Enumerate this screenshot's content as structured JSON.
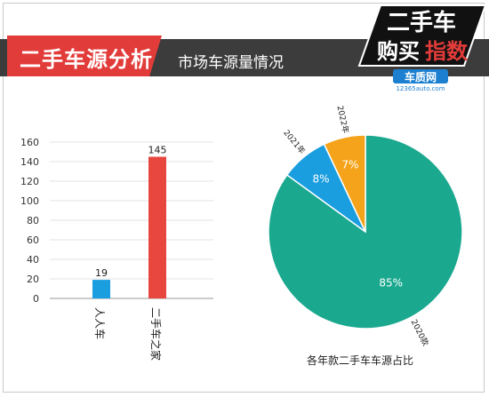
{
  "header": {
    "title": "二手车源分析",
    "subtitle": "市场车源量情况",
    "logo_text_top": "二手车",
    "logo_text_bottom_left": "购买",
    "logo_text_bottom_right": "指数",
    "logo_site": "车质网",
    "logo_url": "12365auto.com"
  },
  "colors": {
    "header_band": "#3c3c3c",
    "title_red": "#e23c3a",
    "bar_blue": "#1a9ee0",
    "bar_red": "#e8473f",
    "pie_teal": "#1aa88f",
    "pie_blue": "#1a9ee0",
    "pie_orange": "#f5a31a"
  },
  "chart_data": [
    {
      "type": "bar",
      "categories": [
        "人人车",
        "二手车之家"
      ],
      "values": [
        19,
        145
      ],
      "data_labels": [
        "19",
        "145"
      ],
      "ylim": [
        0,
        160
      ],
      "yticks": [
        "0",
        "20",
        "40",
        "60",
        "80",
        "100",
        "120",
        "140",
        "160"
      ],
      "grid": true,
      "title": "",
      "xlabel": "",
      "ylabel": ""
    },
    {
      "type": "pie",
      "title": "各年款二手车车源占比",
      "labels": [
        "2020款",
        "2021年",
        "2022年"
      ],
      "values": [
        85,
        8,
        7
      ],
      "data_labels": [
        "85%",
        "8%",
        "7%"
      ]
    }
  ]
}
